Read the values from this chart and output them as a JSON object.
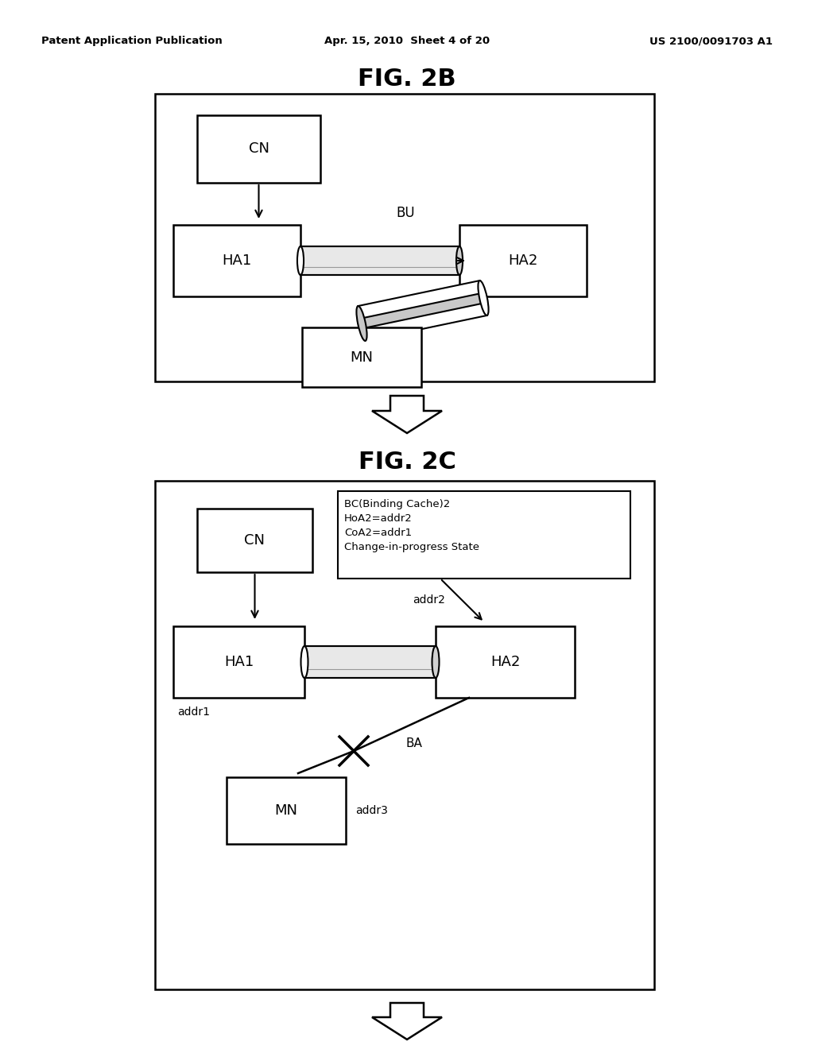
{
  "bg_color": "#ffffff",
  "header_left": "Patent Application Publication",
  "header_mid": "Apr. 15, 2010  Sheet 4 of 20",
  "header_right": "US 2100/0091703 A1",
  "fig2b_title": "FIG. 2B",
  "fig2c_title": "FIG. 2C"
}
